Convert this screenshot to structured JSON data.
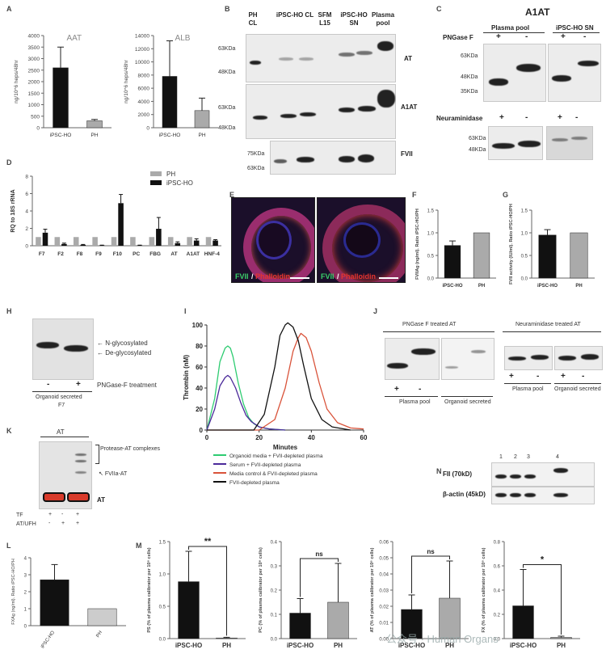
{
  "panels": {
    "A": {
      "label": "A",
      "charts": [
        {
          "type": "bar",
          "title": "AAT",
          "ylabel": "ng/10^6 heps/48hr",
          "categories": [
            "iPSC-HO",
            "PH"
          ],
          "values": [
            2600,
            300
          ],
          "errors": [
            900,
            60
          ],
          "ylim": [
            0,
            4000
          ],
          "yticks": [
            "0",
            "500",
            "1000",
            "1500",
            "2000",
            "2500",
            "3000",
            "3500",
            "4000"
          ],
          "colors": [
            "#111111",
            "#aaaaaa"
          ]
        },
        {
          "type": "bar",
          "title": "ALB",
          "ylabel": "ng/10^6 heps/48hr",
          "categories": [
            "iPSC-HO",
            "PH"
          ],
          "values": [
            7800,
            2600
          ],
          "errors": [
            5400,
            1900
          ],
          "ylim": [
            0,
            14000
          ],
          "yticks": [
            "0",
            "2000",
            "4000",
            "6000",
            "8000",
            "10000",
            "12000",
            "14000"
          ],
          "colors": [
            "#111111",
            "#aaaaaa"
          ]
        }
      ]
    },
    "B": {
      "label": "B",
      "col_headers": [
        "PH CL",
        "iPSC-HO CL",
        "SFM L15",
        "iPSC-HO SN",
        "Plasma pool"
      ],
      "rows": [
        {
          "name": "AT",
          "mw": [
            "63KDa",
            "48KDa"
          ]
        },
        {
          "name": "A1AT",
          "mw": [
            "63KDa",
            "48KDa"
          ]
        },
        {
          "name": "FVII",
          "mw": [
            "75KDa",
            "63KDa"
          ]
        }
      ]
    },
    "C": {
      "label": "C",
      "title": "A1AT",
      "groups": [
        "Plasma pool",
        "iPSC-HO SN"
      ],
      "pngase_label": "PNGase F",
      "signs": [
        "+",
        "-",
        "+",
        "-"
      ],
      "mw_top": [
        "63KDa",
        "48KDa",
        "35KDa"
      ],
      "neuraminidase_label": "Neuraminidase",
      "mw_bottom": [
        "63KDa",
        "48KDa"
      ]
    },
    "D": {
      "label": "D",
      "chart": {
        "type": "bar",
        "ylabel": "RQ to 18S rRNA",
        "categories": [
          "F7",
          "F2",
          "F8",
          "F9",
          "F10",
          "PC",
          "FBG",
          "AT",
          "A1AT",
          "HNF-4"
        ],
        "series": [
          {
            "name": "PH",
            "values": [
              1,
              1,
              1,
              1,
              1,
              1,
              1,
              1,
              1,
              1
            ],
            "color": "#aaaaaa"
          },
          {
            "name": "iPSC-HO",
            "values": [
              1.5,
              0.2,
              0.1,
              0.05,
              4.9,
              0.05,
              1.95,
              0.3,
              0.6,
              0.6
            ],
            "color": "#111111"
          }
        ],
        "errors": [
          0.4,
          0.1,
          0.05,
          0.02,
          1.0,
          0.02,
          1.3,
          0.15,
          0.2,
          0.1
        ],
        "ylim": [
          0,
          8
        ],
        "yticks": [
          "0",
          "2",
          "4",
          "6",
          "8"
        ]
      }
    },
    "E": {
      "label": "E",
      "stain_a": "FVII",
      "stain_sep": "/",
      "stain_b": "Phalloidin"
    },
    "F": {
      "label": "F",
      "chart": {
        "type": "bar",
        "ylabel": "FVIIAg (ng/ml). Ratio iPSC-HO/PH",
        "categories": [
          "iPSC-HO",
          "PH"
        ],
        "values": [
          0.72,
          1.0
        ],
        "errors": [
          0.1,
          0
        ],
        "ylim": [
          0,
          1.5
        ],
        "yticks": [
          "0.0",
          "0.5",
          "1.0",
          "1.5"
        ],
        "colors": [
          "#111111",
          "#aaaaaa"
        ]
      }
    },
    "G": {
      "label": "G",
      "chart": {
        "type": "bar",
        "ylabel": "FVII activity (IU/ml). Ratio iPSC-HO/PH",
        "categories": [
          "iPSC-HO",
          "PH"
        ],
        "values": [
          0.95,
          1.0
        ],
        "errors": [
          0.12,
          0
        ],
        "ylim": [
          0,
          1.5
        ],
        "yticks": [
          "0.0",
          "0.5",
          "1.0",
          "1.5"
        ],
        "colors": [
          "#111111",
          "#aaaaaa"
        ]
      }
    },
    "H": {
      "label": "H",
      "arrow_labels": [
        "N-glycosylated",
        "De-glycosylated"
      ],
      "signs": [
        "-",
        "+"
      ],
      "treatment": "PNGase-F treatment",
      "sample": "Organoid secreted",
      "sample_sub": "F7"
    },
    "I": {
      "label": "I",
      "chart": {
        "type": "line",
        "xlabel": "Minutes",
        "ylabel": "Thrombin (nM)",
        "xlim": [
          0,
          60
        ],
        "ylim": [
          0,
          100
        ],
        "xticks": [
          "0",
          "20",
          "40",
          "60"
        ],
        "yticks": [
          "0",
          "20",
          "40",
          "60",
          "80",
          "100"
        ],
        "series": [
          {
            "name": "Organoid media + FVII-depleted plasma",
            "color": "#2ecc71",
            "x": [
              0,
              3,
              5,
              7,
              8,
              9,
              10,
              12,
              14,
              16,
              18,
              20,
              24,
              30
            ],
            "y": [
              0,
              30,
              65,
              78,
              80,
              78,
              70,
              45,
              25,
              12,
              6,
              3,
              1,
              0
            ]
          },
          {
            "name": "Serum + FVII-depleted plasma",
            "color": "#4b2a9a",
            "x": [
              0,
              3,
              5,
              7,
              8,
              9,
              11,
              13,
              15,
              17,
              20,
              24,
              30
            ],
            "y": [
              0,
              20,
              42,
              50,
              52,
              50,
              40,
              26,
              14,
              8,
              3,
              1,
              0
            ]
          },
          {
            "name": "Media control & FVII-depleted plasma",
            "color": "#d9533a",
            "x": [
              0,
              20,
              26,
              30,
              33,
              35,
              36,
              38,
              40,
              43,
              46,
              50,
              55,
              60
            ],
            "y": [
              0,
              0,
              10,
              40,
              75,
              88,
              92,
              88,
              75,
              45,
              20,
              7,
              2,
              1
            ]
          },
          {
            "name": "FVII-depleted plasma",
            "color": "#111111",
            "x": [
              0,
              18,
              22,
              26,
              28,
              30,
              31,
              33,
              35,
              37,
              40,
              44,
              48,
              55
            ],
            "y": [
              0,
              0,
              15,
              60,
              90,
              100,
              102,
              98,
              85,
              62,
              30,
              10,
              3,
              0
            ]
          }
        ]
      }
    },
    "J": {
      "label": "J",
      "left_title": "PNGase F treated AT",
      "right_title": "Neuraminidase treated AT",
      "signs": [
        "+",
        "-"
      ],
      "sample_a": "Plasma pool",
      "sample_b": "Organoid secreted"
    },
    "K": {
      "label": "K",
      "title": "AT",
      "annotations": [
        "Protease-AT complexes",
        "FVIIa-AT"
      ],
      "band_label": "AT",
      "row_labels": [
        "TF",
        "AT/UFH"
      ],
      "tf_signs": [
        "+",
        "-",
        "+"
      ],
      "ufh_signs": [
        "-",
        "+",
        "+"
      ]
    },
    "N": {
      "label": "N",
      "lanes": [
        "1",
        "2",
        "3",
        "4"
      ],
      "rows": [
        "FII (70kD)",
        "β-actin (45kD)"
      ]
    },
    "L": {
      "label": "L",
      "chart": {
        "type": "bar",
        "ylabel": "FXAg (ng/ml). Ratio iPSC-HO/PH",
        "categories": [
          "iPSC-HO",
          "PH"
        ],
        "values": [
          2.7,
          1.0
        ],
        "errors": [
          0.9,
          0
        ],
        "ylim": [
          0,
          4
        ],
        "yticks": [
          "0",
          "1",
          "2",
          "3",
          "4"
        ],
        "colors": [
          "#111111",
          "#cccccc"
        ]
      }
    },
    "M": {
      "label": "M",
      "charts": [
        {
          "type": "bar",
          "ylabel": "PS (% of plasma calibrator per 10⁶ cells)",
          "categories": [
            "iPSC-HO",
            "PH"
          ],
          "values": [
            0.88,
            0.01
          ],
          "errors": [
            0.47,
            0.01
          ],
          "ylim": [
            0,
            1.5
          ],
          "yticks": [
            "0.0",
            "0.5",
            "1.0",
            "1.5"
          ],
          "sig": "**",
          "colors": [
            "#111111",
            "#aaaaaa"
          ]
        },
        {
          "type": "bar",
          "ylabel": "PC (% of plasma calibrator per 10⁶ cells)",
          "categories": [
            "iPSC-HO",
            "PH"
          ],
          "values": [
            0.105,
            0.15
          ],
          "errors": [
            0.06,
            0.16
          ],
          "ylim": [
            0,
            0.4
          ],
          "yticks": [
            "0.0",
            "0.1",
            "0.2",
            "0.3",
            "0.4"
          ],
          "sig": "ns",
          "colors": [
            "#111111",
            "#aaaaaa"
          ]
        },
        {
          "type": "bar",
          "ylabel": "AT (% of plasma calibrator per 10⁶ cells)",
          "categories": [
            "iPSC-HO",
            "PH"
          ],
          "values": [
            0.018,
            0.025
          ],
          "errors": [
            0.009,
            0.023
          ],
          "ylim": [
            0,
            0.06
          ],
          "yticks": [
            "0.00",
            "0.01",
            "0.02",
            "0.03",
            "0.04",
            "0.05",
            "0.06"
          ],
          "sig": "ns",
          "colors": [
            "#111111",
            "#aaaaaa"
          ]
        },
        {
          "type": "bar",
          "ylabel": "FX (% of plasma calibrator per 10⁶ cells)",
          "categories": [
            "iPSC-HO",
            "PH"
          ],
          "values": [
            0.27,
            0.01
          ],
          "errors": [
            0.3,
            0.01
          ],
          "ylim": [
            0,
            0.8
          ],
          "yticks": [
            "0.0",
            "0.2",
            "0.4",
            "0.6",
            "0.8"
          ],
          "sig": "*",
          "colors": [
            "#111111",
            "#aaaaaa"
          ]
        }
      ]
    }
  },
  "watermark": "公众号 · Human Organs"
}
